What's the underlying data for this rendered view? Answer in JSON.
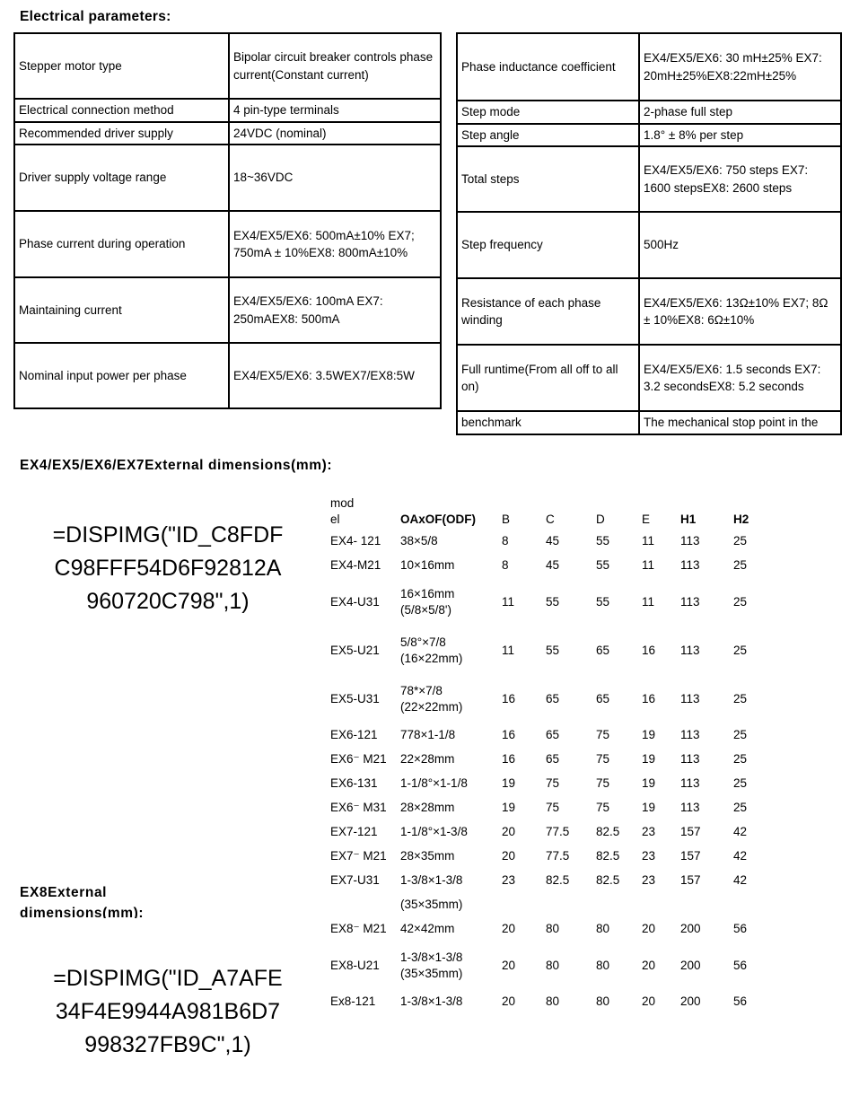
{
  "headings": {
    "electrical": "Electrical parameters:",
    "ex4567_dims": "EX4/EX5/EX6/EX7External dimensions(mm):",
    "ex8_dims": "EX8External\ndimensions(mm):"
  },
  "formulas": {
    "dispimg1": "=DISPIMG(\"ID_C8FDF\nC98FFF54D6F92812A\n960720C798\",1)",
    "dispimg2": "=DISPIMG(\"ID_A7AFE\n34F4E9944A981B6D7\n998327FB9C\",1)"
  },
  "param_tables": {
    "left": {
      "rows": [
        {
          "label": "Stepper motor type",
          "value": "Bipolar circuit breaker controls phase current(Constant current)"
        },
        {
          "label": "Electrical connection method",
          "value": "4 pin-type terminals"
        },
        {
          "label": "Recommended driver supply",
          "value": "24VDC (nominal)"
        },
        {
          "label": "Driver supply voltage range",
          "value": "18~36VDC"
        },
        {
          "label": "Phase current during operation",
          "value": "EX4/EX5/EX6: 500mA±10% EX7; 750mA ± 10%EX8: 800mA±10%"
        },
        {
          "label": "Maintaining current",
          "value": "EX4/EX5/EX6: 100mA EX7: 250mAEX8: 500mA"
        },
        {
          "label": "Nominal input power per phase",
          "value": "EX4/EX5/EX6: 3.5WEX7/EX8:5W"
        }
      ]
    },
    "right": {
      "rows": [
        {
          "label": "Phase inductance coefficient",
          "value": "EX4/EX5/EX6: 30 mH±25% EX7: 20mH±25%EX8:22mH±25%"
        },
        {
          "label": "Step mode",
          "value": "2-phase full step"
        },
        {
          "label": "Step angle",
          "value": "1.8° ± 8% per step"
        },
        {
          "label": "Total steps",
          "value": "EX4/EX5/EX6: 750 steps EX7: 1600 stepsEX8: 2600 steps"
        },
        {
          "label": "Step frequency",
          "value": "500Hz"
        },
        {
          "label": "Resistance of each phase winding",
          "value": "EX4/EX5/EX6: 13Ω±10% EX7; 8Ω ± 10%EX8: 6Ω±10%"
        },
        {
          "label": "Full runtime(From all off to all on)",
          "value": "EX4/EX5/EX6: 1.5 seconds EX7: 3.2 secondsEX8: 5.2 seconds"
        },
        {
          "label": "benchmark",
          "value": "The mechanical stop point in the"
        }
      ]
    }
  },
  "dim_table": {
    "headers": {
      "model": "mod\nel",
      "size": "OAxOF(ODF)",
      "b": "B",
      "c": "C",
      "d": "D",
      "e": "E",
      "h1": "H1",
      "h2": "H2"
    },
    "rows": [
      {
        "model": "EX4- 121",
        "size": [
          "38×5/8"
        ],
        "vals": [
          "8",
          "45",
          "55",
          "11",
          "113",
          "25"
        ]
      },
      {
        "model": "EX4-M21",
        "size": [
          "10×16mm"
        ],
        "vals": [
          "8",
          "45",
          "55",
          "11",
          "113",
          "25"
        ]
      },
      {
        "model": "EX4-U31",
        "size": [
          "16×16mm",
          "(5/8×5/8')"
        ],
        "vals": [
          "11",
          "55",
          "55",
          "11",
          "113",
          "25"
        ]
      },
      {
        "model": "EX5-U21",
        "size": [
          "5/8°×7/8",
          "(16×22mm)"
        ],
        "vals": [
          "11",
          "55",
          "65",
          "16",
          "113",
          "25"
        ]
      },
      {
        "model": "EX5-U31",
        "size": [
          "78*×7/8",
          "(22×22mm)"
        ],
        "vals": [
          "16",
          "65",
          "65",
          "16",
          "113",
          "25"
        ]
      },
      {
        "model": "EX6-121",
        "size": [
          "778×1-1/8"
        ],
        "vals": [
          "16",
          "65",
          "75",
          "19",
          "113",
          "25"
        ]
      },
      {
        "model": "EX6⁻ M21",
        "size": [
          "22×28mm"
        ],
        "vals": [
          "16",
          "65",
          "75",
          "19",
          "113",
          "25"
        ]
      },
      {
        "model": "EX6-131",
        "size": [
          "1-1/8°×1-1/8"
        ],
        "vals": [
          "19",
          "75",
          "75",
          "19",
          "113",
          "25"
        ]
      },
      {
        "model": "EX6⁻ M31",
        "size": [
          "28×28mm"
        ],
        "vals": [
          "19",
          "75",
          "75",
          "19",
          "113",
          "25"
        ]
      },
      {
        "model": "EX7-121",
        "size": [
          "1-1/8°×1-3/8"
        ],
        "vals": [
          "20",
          "77.5",
          "82.5",
          "23",
          "157",
          "42"
        ]
      },
      {
        "model": "EX7⁻ M21",
        "size": [
          "28×35mm"
        ],
        "vals": [
          "20",
          "77.5",
          "82.5",
          "23",
          "157",
          "42"
        ]
      },
      {
        "model": "EX7-U31",
        "size": [
          "1-3/8×1-3/8"
        ],
        "vals": [
          "23",
          "82.5",
          "82.5",
          "23",
          "157",
          "42"
        ]
      },
      {
        "model": "",
        "size": [
          "(35×35mm)"
        ],
        "vals": [
          "",
          "",
          "",
          "",
          "",
          ""
        ]
      },
      {
        "model": "EX8⁻ M21",
        "size": [
          "42×42mm"
        ],
        "vals": [
          "20",
          "80",
          "80",
          "20",
          "200",
          "56"
        ]
      },
      {
        "model": "EX8-U21",
        "size": [
          "1-3/8×1-3/8",
          "(35×35mm)"
        ],
        "vals": [
          "20",
          "80",
          "80",
          "20",
          "200",
          "56"
        ]
      },
      {
        "model": "Ex8-121",
        "size": [
          "1-3/8×1-3/8"
        ],
        "vals": [
          "20",
          "80",
          "80",
          "20",
          "200",
          "56"
        ]
      }
    ]
  }
}
